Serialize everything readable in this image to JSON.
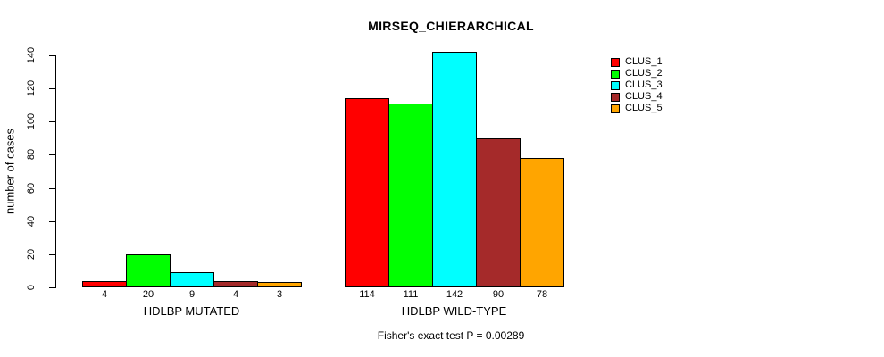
{
  "chart_data": {
    "type": "bar",
    "title": "MIRSEQ_CHIERARCHICAL",
    "ylabel": "number of cases",
    "xlabel": "",
    "ylim": [
      0,
      140
    ],
    "yticks": [
      0,
      20,
      40,
      60,
      80,
      100,
      120,
      140
    ],
    "grid": false,
    "legend_position": "right",
    "bar_value_labels": true,
    "categories": [
      "HDLBP MUTATED",
      "HDLBP WILD-TYPE"
    ],
    "series": [
      {
        "name": "CLUS_1",
        "color": "#ff0000",
        "values": [
          4,
          114
        ]
      },
      {
        "name": "CLUS_2",
        "color": "#00ff00",
        "values": [
          20,
          111
        ]
      },
      {
        "name": "CLUS_3",
        "color": "#00ffff",
        "values": [
          9,
          142
        ]
      },
      {
        "name": "CLUS_4",
        "color": "#a52a2a",
        "values": [
          4,
          90
        ]
      },
      {
        "name": "CLUS_5",
        "color": "#ffa500",
        "values": [
          3,
          78
        ]
      }
    ],
    "annotation": "Fisher's exact test P = 0.00289",
    "colors": {
      "background": "#ffffff",
      "axis": "#000000",
      "text": "#000000",
      "bar_border": "#000000"
    }
  }
}
